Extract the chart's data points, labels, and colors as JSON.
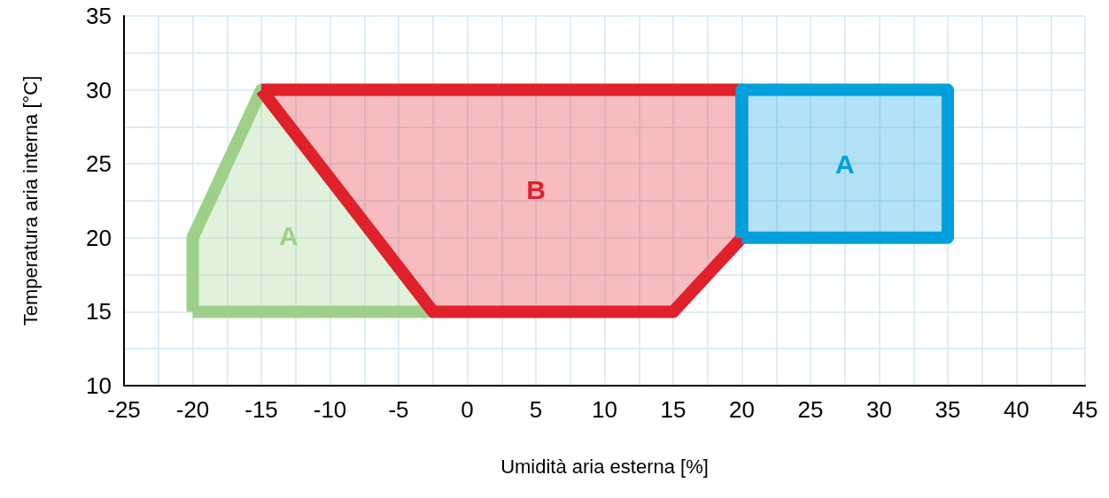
{
  "chart_data": {
    "type": "area",
    "xlabel": "Umidità aria esterna [%]",
    "ylabel": "Temperatura aria interna [°C]",
    "xlim": [
      -25,
      45
    ],
    "xticks": [
      -25,
      -20,
      -15,
      -10,
      -5,
      0,
      5,
      10,
      15,
      20,
      25,
      30,
      35,
      40,
      45
    ],
    "ylim": [
      10,
      35
    ],
    "yticks": [
      10,
      15,
      20,
      25,
      30,
      35
    ],
    "grid": true,
    "series": [
      {
        "name": "A",
        "color": "#9fd08a",
        "x": [
          -20,
          -20,
          -15,
          -2.5,
          -20
        ],
        "values": [
          15,
          20,
          30,
          15,
          15
        ]
      },
      {
        "name": "B",
        "color": "#e0202a",
        "x": [
          -15,
          20,
          20,
          15,
          -2.5,
          -15
        ],
        "values": [
          30,
          30,
          20,
          15,
          15,
          30
        ]
      },
      {
        "name": "A",
        "color": "#00a0de",
        "x": [
          20,
          35,
          35,
          20,
          20
        ],
        "values": [
          20,
          20,
          30,
          30,
          20
        ]
      }
    ]
  }
}
